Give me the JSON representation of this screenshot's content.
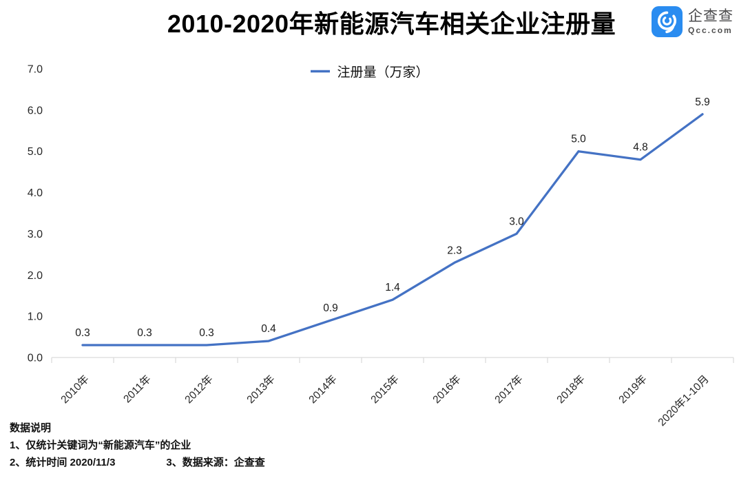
{
  "title": "2010-2020年新能源汽车相关企业注册量",
  "logo": {
    "name": "企查查",
    "domain": "Qcc.com",
    "brand_color": "#2A8CF0",
    "icon": "qcc-magnifier-icon"
  },
  "legend": {
    "label": "注册量（万家）",
    "line_color": "#4472C4"
  },
  "chart_data": {
    "type": "line",
    "title": "2010-2020年新能源汽车相关企业注册量",
    "categories": [
      "2010年",
      "2011年",
      "2012年",
      "2013年",
      "2014年",
      "2015年",
      "2016年",
      "2017年",
      "2018年",
      "2019年",
      "2020年1-10月"
    ],
    "series": [
      {
        "name": "注册量（万家）",
        "values": [
          0.3,
          0.3,
          0.3,
          0.4,
          0.9,
          1.4,
          2.3,
          3.0,
          5.0,
          4.8,
          5.9
        ]
      }
    ],
    "values": [
      0.3,
      0.3,
      0.3,
      0.4,
      0.9,
      1.4,
      2.3,
      3.0,
      5.0,
      4.8,
      5.9
    ],
    "data_labels": [
      "0.3",
      "0.3",
      "0.3",
      "0.4",
      "0.9",
      "1.4",
      "2.3",
      "3.0",
      "5.0",
      "4.8",
      "5.9"
    ],
    "xlabel": "",
    "ylabel": "",
    "ylim": [
      0.0,
      7.0
    ],
    "ytick_step": 1.0,
    "yticks": [
      "0.0",
      "1.0",
      "2.0",
      "3.0",
      "4.0",
      "5.0",
      "6.0",
      "7.0"
    ],
    "grid": false,
    "legend_position": "top",
    "line_color": "#4472C4",
    "axis_color": "#D9D9D9",
    "label_color": "#262626"
  },
  "notes": {
    "heading": "数据说明",
    "line1": "1、仅统计关键词为“新能源汽车”的企业",
    "line2_left": "2、统计时间 2020/11/3",
    "line2_right": "3、数据来源：企查查"
  }
}
